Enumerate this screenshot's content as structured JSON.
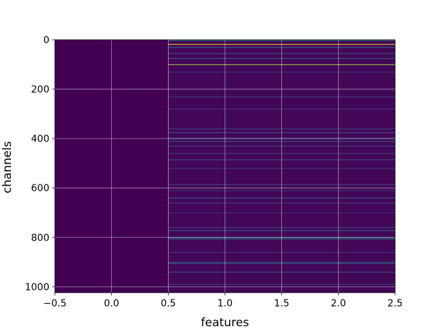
{
  "chart_data": {
    "type": "heatmap",
    "xlabel": "features",
    "ylabel": "channels",
    "xlim": [
      -0.5,
      2.5
    ],
    "ylim": [
      1024,
      0
    ],
    "n_rows": 1024,
    "n_cols": 3,
    "colormap": "viridis",
    "grid": true,
    "xticks": [
      -0.5,
      0.0,
      0.5,
      1.0,
      1.5,
      2.0,
      2.5
    ],
    "xtick_labels": [
      "−0.5",
      "0.0",
      "0.5",
      "1.0",
      "1.5",
      "2.0",
      "2.5"
    ],
    "yticks": [
      0,
      200,
      400,
      600,
      800,
      1000
    ],
    "ytick_labels": [
      "0",
      "200",
      "400",
      "600",
      "800",
      "1000"
    ],
    "column_0_values": "all near 0 (dark purple)",
    "columns_1_2_background": 0.02,
    "columns_1_2_highlights": [
      {
        "channel": 2,
        "value": 0.45
      },
      {
        "channel": 18,
        "value": 0.98
      },
      {
        "channel": 30,
        "value": 0.35
      },
      {
        "channel": 55,
        "value": 0.25
      },
      {
        "channel": 75,
        "value": 0.3
      },
      {
        "channel": 100,
        "value": 0.85
      },
      {
        "channel": 130,
        "value": 0.2
      },
      {
        "channel": 230,
        "value": 0.2
      },
      {
        "channel": 280,
        "value": 0.18
      },
      {
        "channel": 360,
        "value": 0.22
      },
      {
        "channel": 375,
        "value": 0.3
      },
      {
        "channel": 398,
        "value": 0.28
      },
      {
        "channel": 410,
        "value": 0.35
      },
      {
        "channel": 430,
        "value": 0.25
      },
      {
        "channel": 460,
        "value": 0.22
      },
      {
        "channel": 485,
        "value": 0.3
      },
      {
        "channel": 520,
        "value": 0.18
      },
      {
        "channel": 585,
        "value": 0.25
      },
      {
        "channel": 610,
        "value": 0.2
      },
      {
        "channel": 640,
        "value": 0.3
      },
      {
        "channel": 660,
        "value": 0.22
      },
      {
        "channel": 700,
        "value": 0.18
      },
      {
        "channel": 760,
        "value": 0.25
      },
      {
        "channel": 772,
        "value": 0.3
      },
      {
        "channel": 800,
        "value": 0.5
      },
      {
        "channel": 806,
        "value": 0.4
      },
      {
        "channel": 860,
        "value": 0.2
      },
      {
        "channel": 900,
        "value": 0.35
      },
      {
        "channel": 905,
        "value": 0.28
      },
      {
        "channel": 940,
        "value": 0.3
      },
      {
        "channel": 990,
        "value": 0.22
      }
    ]
  }
}
